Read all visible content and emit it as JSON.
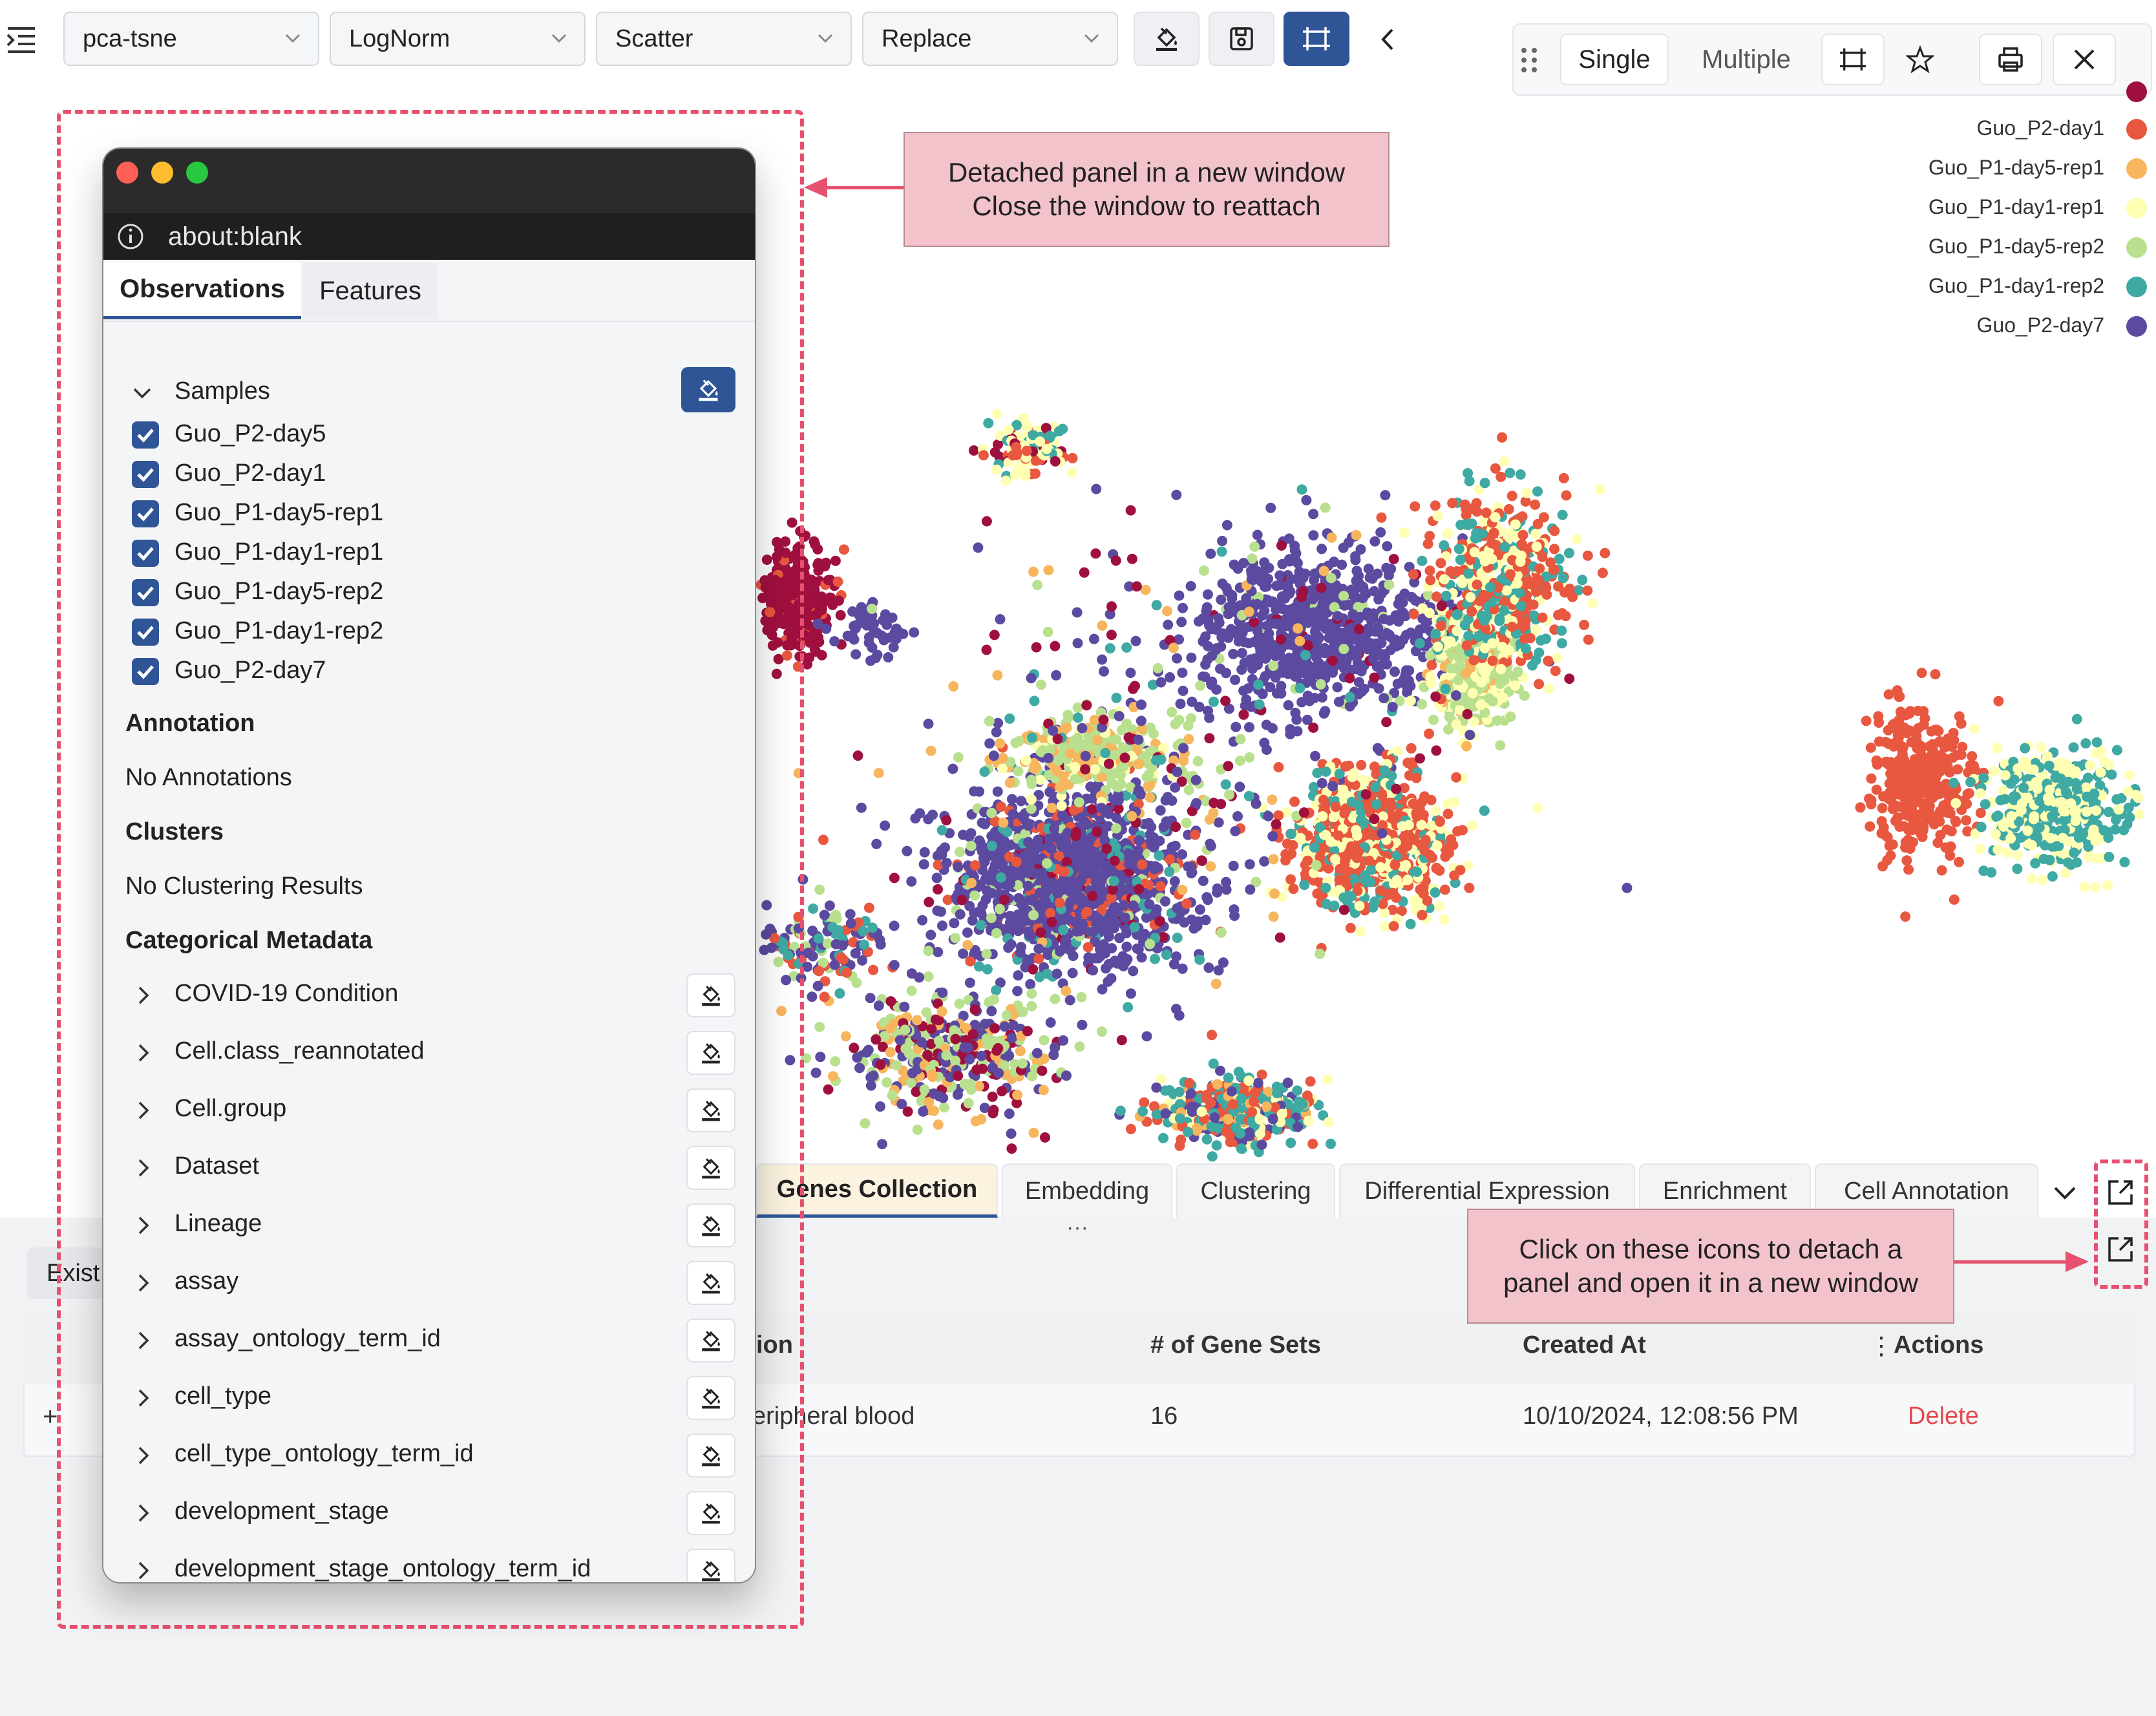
{
  "toolbar": {
    "menu_icon": "outdent-menu-icon",
    "selects": [
      {
        "value": "pca-tsne"
      },
      {
        "value": "LogNorm"
      },
      {
        "value": "Scatter"
      },
      {
        "value": "Replace"
      }
    ],
    "buttons": [
      "paint-bucket-icon",
      "save-icon",
      "fit-frame-icon",
      "chevron-left-icon"
    ]
  },
  "legend_bar": {
    "single_label": "Single",
    "multiple_label": "Multiple",
    "icons": [
      "drag-handle-icon",
      "fit-frame-icon",
      "star-icon",
      "print-icon",
      "close-icon"
    ]
  },
  "legend": {
    "items": [
      {
        "label": "Guo_P2-day1",
        "color": "#e8573f"
      },
      {
        "label": "Guo_P1-day5-rep1",
        "color": "#f7b55e"
      },
      {
        "label": "Guo_P1-day1-rep1",
        "color": "#ffffb3"
      },
      {
        "label": "Guo_P1-day5-rep2",
        "color": "#b9e08f"
      },
      {
        "label": "Guo_P1-day1-rep2",
        "color": "#3fa9a3"
      },
      {
        "label": "Guo_P2-day7",
        "color": "#5b4aa0"
      }
    ],
    "partial_color": "#a0103f"
  },
  "notes": {
    "detach_line1": "Detached panel in a new window",
    "detach_line2": "Close the window to reattach",
    "click_line1": "Click on these icons to detach a",
    "click_line2": "panel and open it in a new window"
  },
  "bottom": {
    "tabs": [
      {
        "label": "Genes Collection"
      },
      {
        "label": "Embedding"
      },
      {
        "label": "Clustering"
      },
      {
        "label": "Differential Expression"
      },
      {
        "label": "Enrichment"
      },
      {
        "label": "Cell Annotation"
      }
    ],
    "existing_partial": "Exist",
    "table": {
      "headers": {
        "description_partial": "ion",
        "gene_sets": "# of Gene Sets",
        "created_at": "Created At",
        "actions": "Actions"
      },
      "row": {
        "description_partial": "eripheral blood",
        "gene_sets": "16",
        "created_at": "10/10/2024, 12:08:56 PM",
        "action": "Delete"
      }
    }
  },
  "window": {
    "url": "about:blank",
    "tabs": [
      {
        "label": "Observations"
      },
      {
        "label": "Features"
      }
    ],
    "samples_title": "Samples",
    "samples": [
      "Guo_P2-day5",
      "Guo_P2-day1",
      "Guo_P1-day5-rep1",
      "Guo_P1-day1-rep1",
      "Guo_P1-day5-rep2",
      "Guo_P1-day1-rep2",
      "Guo_P2-day7"
    ],
    "annotation_title": "Annotation",
    "annotation_empty": "No Annotations",
    "clusters_title": "Clusters",
    "clusters_empty": "No Clustering Results",
    "categorical_title": "Categorical Metadata",
    "categorical": [
      "COVID-19 Condition",
      "Cell.class_reannotated",
      "Cell.group",
      "Dataset",
      "Lineage",
      "assay",
      "assay_ontology_term_id",
      "cell_type",
      "cell_type_ontology_term_id",
      "development_stage",
      "development_stage_ontology_term_id"
    ]
  },
  "colors": {
    "accent": "#2f5597",
    "annotation_pink": "#f3c3cc",
    "dash_red": "#e7506e",
    "delete_red": "#e5484d"
  }
}
